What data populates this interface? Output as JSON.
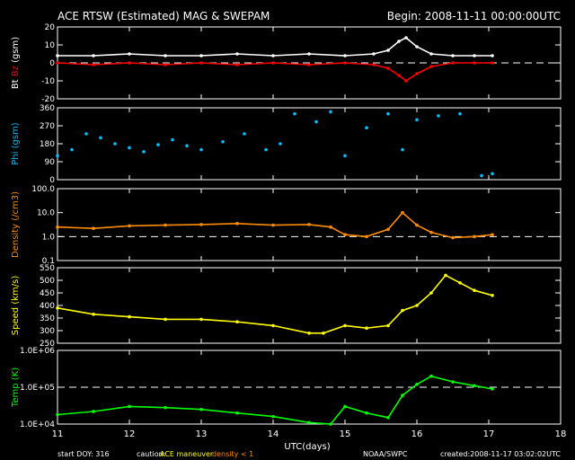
{
  "header": {
    "title": "ACE RTSW (Estimated) MAG & SWEPAM",
    "begin": "Begin: 2008-11-11 00:00:00UTC"
  },
  "footer": {
    "start_doy": "start DOY: 316",
    "caution": "caution:",
    "ace_maneuver": "ACE maneuver",
    "density_note": "density < 1",
    "credit": "NOAA/SWPC",
    "created": "created:2008-11-17 03:02:02UTC"
  },
  "colors": {
    "bt": "#ffffff",
    "bz": "#ff0000",
    "phi": "#00c0ff",
    "density": "#ff8c00",
    "speed": "#ffff00",
    "temp": "#00ff00",
    "maneuver": "#ffff00",
    "low_density": "#ff8c00"
  },
  "chart_data": [
    {
      "type": "line",
      "panel": "mag",
      "ylabel_parts": [
        "Bt",
        "Bz",
        "(gsm)"
      ],
      "ylim": [
        -20,
        20
      ],
      "yticks": [
        "20",
        "10",
        "0",
        "-10",
        "-20"
      ],
      "x_range_days": [
        11,
        18
      ],
      "reference_line": 0,
      "series": [
        {
          "name": "Bt",
          "x": [
            11.0,
            11.5,
            12.0,
            12.5,
            13.0,
            13.5,
            14.0,
            14.5,
            15.0,
            15.4,
            15.6,
            15.75,
            15.85,
            16.0,
            16.2,
            16.5,
            16.8,
            17.05
          ],
          "y": [
            4,
            4,
            5,
            4,
            4,
            5,
            4,
            5,
            4,
            5,
            7,
            12,
            14,
            9,
            5,
            4,
            4,
            4
          ]
        },
        {
          "name": "Bz",
          "x": [
            11.0,
            11.5,
            12.0,
            12.5,
            13.0,
            13.5,
            14.0,
            14.5,
            15.0,
            15.4,
            15.6,
            15.75,
            15.85,
            16.0,
            16.2,
            16.5,
            16.8,
            17.05
          ],
          "y": [
            0,
            -1,
            0,
            -1,
            0,
            -1,
            0,
            -1,
            0,
            -1,
            -3,
            -7,
            -10,
            -6,
            -2,
            0,
            0,
            0
          ]
        }
      ]
    },
    {
      "type": "scatter",
      "panel": "phi",
      "ylabel": "Phi (gsm)",
      "ylim": [
        0,
        360
      ],
      "yticks": [
        "360",
        "270",
        "180",
        "90",
        "0"
      ],
      "x_range_days": [
        11,
        18
      ],
      "series": [
        {
          "name": "Phi",
          "x": [
            11.0,
            11.2,
            11.4,
            11.6,
            11.8,
            12.0,
            12.2,
            12.4,
            12.6,
            12.8,
            13.0,
            13.3,
            13.6,
            13.9,
            14.1,
            14.3,
            14.6,
            14.8,
            15.0,
            15.3,
            15.6,
            15.8,
            16.0,
            16.3,
            16.6,
            16.9,
            17.05
          ],
          "y": [
            120,
            150,
            230,
            210,
            180,
            160,
            140,
            175,
            200,
            170,
            150,
            190,
            230,
            150,
            180,
            330,
            290,
            340,
            120,
            260,
            330,
            150,
            300,
            320,
            330,
            20,
            30
          ]
        }
      ]
    },
    {
      "type": "line",
      "panel": "density",
      "ylabel": "Density (/cm3)",
      "yscale": "log",
      "ylim": [
        0.1,
        100
      ],
      "yticks": [
        "100.0",
        "10.0",
        "1.0",
        "0.1"
      ],
      "x_range_days": [
        11,
        18
      ],
      "reference_line": 1,
      "series": [
        {
          "name": "Density",
          "x": [
            11.0,
            11.5,
            12.0,
            12.5,
            13.0,
            13.5,
            14.0,
            14.5,
            14.8,
            15.0,
            15.3,
            15.6,
            15.8,
            16.0,
            16.2,
            16.5,
            16.8,
            17.05
          ],
          "y": [
            2.5,
            2.2,
            2.8,
            3.0,
            3.2,
            3.5,
            3.0,
            3.2,
            2.5,
            1.2,
            1.0,
            2.0,
            10.0,
            3.0,
            1.5,
            0.9,
            1.0,
            1.2
          ]
        }
      ]
    },
    {
      "type": "line",
      "panel": "speed",
      "ylabel": "Speed (km/s)",
      "ylim": [
        250,
        550
      ],
      "yticks": [
        "550",
        "500",
        "450",
        "400",
        "350",
        "300",
        "250"
      ],
      "x_range_days": [
        11,
        18
      ],
      "series": [
        {
          "name": "Speed",
          "x": [
            11.0,
            11.5,
            12.0,
            12.5,
            13.0,
            13.5,
            14.0,
            14.5,
            14.7,
            15.0,
            15.3,
            15.6,
            15.8,
            16.0,
            16.2,
            16.4,
            16.6,
            16.8,
            17.05
          ],
          "y": [
            390,
            365,
            355,
            345,
            345,
            335,
            320,
            290,
            290,
            320,
            310,
            320,
            380,
            400,
            450,
            520,
            490,
            460,
            440
          ]
        }
      ]
    },
    {
      "type": "line",
      "panel": "temp",
      "ylabel": "Temp (K)",
      "yscale": "log",
      "ylim": [
        10000,
        1000000
      ],
      "yticks": [
        "1.0E+06",
        "1.0E+05",
        "1.0E+04"
      ],
      "x_range_days": [
        11,
        18
      ],
      "reference_line": 100000,
      "xlabel": "UTC(days)",
      "xticks": [
        "11",
        "12",
        "13",
        "14",
        "15",
        "16",
        "17",
        "18"
      ],
      "series": [
        {
          "name": "Temp",
          "x": [
            11.0,
            11.5,
            12.0,
            12.5,
            13.0,
            13.5,
            14.0,
            14.5,
            14.8,
            15.0,
            15.3,
            15.6,
            15.8,
            16.0,
            16.2,
            16.5,
            16.8,
            17.05
          ],
          "y": [
            18000,
            22000,
            30000,
            28000,
            25000,
            20000,
            16000,
            11000,
            10000,
            30000,
            20000,
            15000,
            60000,
            120000,
            200000,
            140000,
            110000,
            90000
          ]
        }
      ]
    }
  ]
}
